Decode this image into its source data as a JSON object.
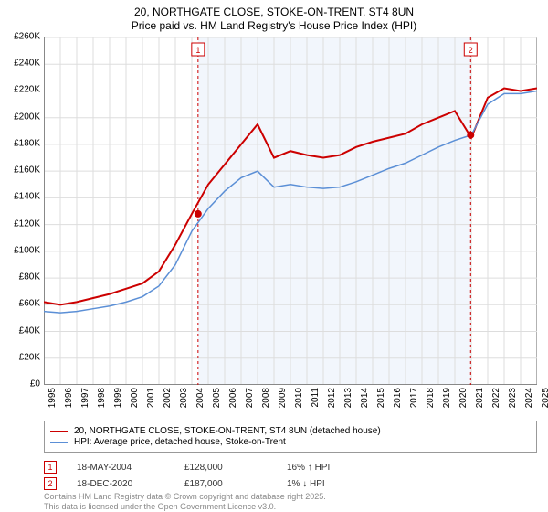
{
  "title": {
    "line1": "20, NORTHGATE CLOSE, STOKE-ON-TRENT, ST4 8UN",
    "line2": "Price paid vs. HM Land Registry's House Price Index (HPI)"
  },
  "chart": {
    "type": "line",
    "background_color": "#ffffff",
    "shaded_region_color": "#f2f6fc",
    "grid_color": "#dddddd",
    "axis_color": "#888888",
    "x_years": [
      1995,
      1996,
      1997,
      1998,
      1999,
      2000,
      2001,
      2002,
      2003,
      2004,
      2005,
      2006,
      2007,
      2008,
      2009,
      2010,
      2011,
      2012,
      2013,
      2014,
      2015,
      2016,
      2017,
      2018,
      2019,
      2020,
      2021,
      2022,
      2023,
      2024,
      2025
    ],
    "ylim": [
      0,
      260000
    ],
    "ytick_step": 20000,
    "y_labels": [
      "£0",
      "£20K",
      "£40K",
      "£60K",
      "£80K",
      "£100K",
      "£120K",
      "£140K",
      "£160K",
      "£180K",
      "£200K",
      "£220K",
      "£240K",
      "£260K"
    ],
    "label_fontsize": 10,
    "title_fontsize": 12,
    "series": [
      {
        "name": "property",
        "label": "20, NORTHGATE CLOSE, STOKE-ON-TRENT, ST4 8UN (detached house)",
        "color": "#cc0000",
        "line_width": 2,
        "values_by_year": {
          "1995": 62000,
          "1996": 60000,
          "1997": 62000,
          "1998": 65000,
          "1999": 68000,
          "2000": 72000,
          "2001": 76000,
          "2002": 85000,
          "2003": 105000,
          "2004": 128000,
          "2005": 150000,
          "2006": 165000,
          "2007": 180000,
          "2008": 195000,
          "2009": 170000,
          "2010": 175000,
          "2011": 172000,
          "2012": 170000,
          "2013": 172000,
          "2014": 178000,
          "2015": 182000,
          "2016": 185000,
          "2017": 188000,
          "2018": 195000,
          "2019": 200000,
          "2020": 205000,
          "2021": 185000,
          "2022": 215000,
          "2023": 222000,
          "2024": 220000,
          "2025": 222000
        }
      },
      {
        "name": "hpi",
        "label": "HPI: Average price, detached house, Stoke-on-Trent",
        "color": "#5b8fd6",
        "line_width": 1.5,
        "values_by_year": {
          "1995": 55000,
          "1996": 54000,
          "1997": 55000,
          "1998": 57000,
          "1999": 59000,
          "2000": 62000,
          "2001": 66000,
          "2002": 74000,
          "2003": 90000,
          "2004": 115000,
          "2005": 132000,
          "2006": 145000,
          "2007": 155000,
          "2008": 160000,
          "2009": 148000,
          "2010": 150000,
          "2011": 148000,
          "2012": 147000,
          "2013": 148000,
          "2014": 152000,
          "2015": 157000,
          "2016": 162000,
          "2017": 166000,
          "2018": 172000,
          "2019": 178000,
          "2020": 183000,
          "2021": 187000,
          "2022": 210000,
          "2023": 218000,
          "2024": 218000,
          "2025": 220000
        }
      }
    ],
    "events": [
      {
        "badge": "1",
        "date": "18-MAY-2004",
        "price": "£128,000",
        "diff": "16% ↑ HPI",
        "x_year": 2004.38,
        "y_value": 128000,
        "marker_color": "#cc0000"
      },
      {
        "badge": "2",
        "date": "18-DEC-2020",
        "price": "£187,000",
        "diff": "1% ↓ HPI",
        "x_year": 2020.96,
        "y_value": 187000,
        "marker_color": "#cc0000"
      }
    ],
    "event_line_color": "#cc0000",
    "event_line_dash": "3,3"
  },
  "legend": {
    "border_color": "#999999"
  },
  "footer": {
    "line1": "Contains HM Land Registry data © Crown copyright and database right 2025.",
    "line2": "This data is licensed under the Open Government Licence v3.0."
  }
}
